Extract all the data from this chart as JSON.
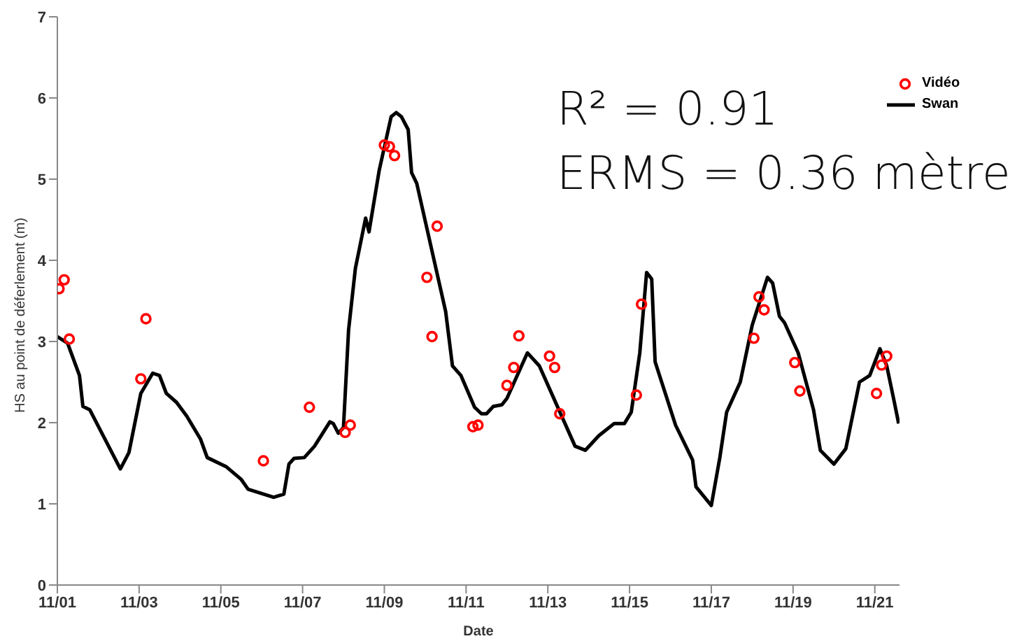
{
  "chart_data": {
    "type": "line",
    "xlabel": "Date",
    "ylabel": "HS au point de déferlement (m)",
    "xlim": [
      "--11-01",
      "--11-21T14:30"
    ],
    "xticks": [
      {
        "value": "--11-01",
        "label": "11/01"
      },
      {
        "value": "--11-03",
        "label": "11/03"
      },
      {
        "value": "--11-05",
        "label": "11/05"
      },
      {
        "value": "--11-07",
        "label": "11/07"
      },
      {
        "value": "--11-09",
        "label": "11/09"
      },
      {
        "value": "--11-11",
        "label": "11/11"
      },
      {
        "value": "--11-13",
        "label": "11/13"
      },
      {
        "value": "--11-15",
        "label": "11/15"
      },
      {
        "value": "--11-17",
        "label": "11/17"
      },
      {
        "value": "--11-19",
        "label": "11/19"
      },
      {
        "value": "--11-21",
        "label": "11/21"
      }
    ],
    "ylim": [
      0,
      7
    ],
    "yticks": [
      0,
      1,
      2,
      3,
      4,
      5,
      6,
      7
    ],
    "legend": "top right",
    "annotations": [
      "R² = 0.91",
      "ERMS = 0.36 mètre"
    ],
    "series": [
      {
        "name": "Vidéo",
        "type": "scatter",
        "color": "#ff0000",
        "marker": "circle",
        "x": [
          "--11-01T01:00",
          "--11-01T04:00",
          "--11-01T07:00",
          "--11-03T01:00",
          "--11-03T04:00",
          "--11-06T01:00",
          "--11-07T04:00",
          "--11-08T01:00",
          "--11-08T04:00",
          "--11-09T00:00",
          "--11-09T03:00",
          "--11-09T06:00",
          "--11-10T01:00",
          "--11-10T04:00",
          "--11-10T07:00",
          "--11-11T04:00",
          "--11-11T07:00",
          "--11-12T00:00",
          "--11-12T04:00",
          "--11-12T07:00",
          "--11-13T01:00",
          "--11-13T04:00",
          "--11-13T07:00",
          "--11-15T04:00",
          "--11-15T07:00",
          "--11-18T01:00",
          "--11-18T04:00",
          "--11-18T07:00",
          "--11-19T01:00",
          "--11-19T04:00",
          "--11-21T01:00",
          "--11-21T04:00",
          "--11-21T07:00"
        ],
        "values": [
          3.65,
          3.76,
          3.03,
          2.54,
          3.28,
          1.53,
          2.19,
          1.88,
          1.97,
          5.42,
          5.4,
          5.29,
          3.79,
          3.06,
          4.42,
          1.95,
          1.97,
          2.46,
          2.68,
          3.07,
          2.82,
          2.68,
          2.11,
          2.34,
          3.46,
          3.04,
          3.55,
          3.39,
          2.74,
          2.39,
          2.36,
          2.71,
          2.82
        ]
      },
      {
        "name": "Swan",
        "color": "#000000",
        "line_style": "solid",
        "x": [
          "--11-01T00:00",
          "--11-01T06:00",
          "--11-01T13:00",
          "--11-01T15:00",
          "--11-01T19:00",
          "--11-02T13:00",
          "--11-02T18:00",
          "--11-03T01:00",
          "--11-03T08:00",
          "--11-03T12:00",
          "--11-03T16:00",
          "--11-03T22:00",
          "--11-04T04:00",
          "--11-04T12:00",
          "--11-04T16:00",
          "--11-05T03:00",
          "--11-05T12:00",
          "--11-05T16:00",
          "--11-06T07:00",
          "--11-06T13:00",
          "--11-06T16:00",
          "--11-06T19:00",
          "--11-07T01:00",
          "--11-07T07:00",
          "--11-07T16:00",
          "--11-07T18:00",
          "--11-07T21:00",
          "--11-08T00:00",
          "--11-08T03:00",
          "--11-08T07:00",
          "--11-08T13:00",
          "--11-08T15:00",
          "--11-08T21:00",
          "--11-09T04:00",
          "--11-09T07:00",
          "--11-09T10:00",
          "--11-09T14:00",
          "--11-09T16:00",
          "--11-09T19:00",
          "--11-10T12:00",
          "--11-10T16:00",
          "--11-10T21:00",
          "--11-11T05:00",
          "--11-11T09:00",
          "--11-11T12:00",
          "--11-11T16:00",
          "--11-11T21:00",
          "--11-12T00:00",
          "--11-12T12:00",
          "--11-12T19:00",
          "--11-13T16:00",
          "--11-13T22:00",
          "--11-14T06:00",
          "--11-14T15:00",
          "--11-14T21:00",
          "--11-15T01:00",
          "--11-15T06:00",
          "--11-15T10:00",
          "--11-15T13:00",
          "--11-15T15:00",
          "--11-16T03:00",
          "--11-16T13:00",
          "--11-16T15:00",
          "--11-17T00:00",
          "--11-17T05:00",
          "--11-17T09:00",
          "--11-17T17:00",
          "--11-18T00:00",
          "--11-18T09:00",
          "--11-18T12:00",
          "--11-18T16:00",
          "--11-18T19:00",
          "--11-19T03:00",
          "--11-19T12:00",
          "--11-19T16:00",
          "--11-20T00:00",
          "--11-20T07:00",
          "--11-20T15:00",
          "--11-20T21:00",
          "--11-21T03:00",
          "--11-21T07:00",
          "--11-21T11:00",
          "--11-21T14:00"
        ],
        "values": [
          3.06,
          2.98,
          2.58,
          2.2,
          2.16,
          1.43,
          1.63,
          2.36,
          2.61,
          2.58,
          2.36,
          2.25,
          2.08,
          1.8,
          1.57,
          1.46,
          1.3,
          1.18,
          1.08,
          1.12,
          1.49,
          1.56,
          1.57,
          1.71,
          2.01,
          1.99,
          1.87,
          1.94,
          3.14,
          3.9,
          4.52,
          4.35,
          5.11,
          5.77,
          5.82,
          5.77,
          5.61,
          5.08,
          4.95,
          3.37,
          2.7,
          2.58,
          2.19,
          2.11,
          2.11,
          2.2,
          2.22,
          2.3,
          2.86,
          2.7,
          1.71,
          1.66,
          1.84,
          1.99,
          1.99,
          2.13,
          2.86,
          3.85,
          3.77,
          2.75,
          1.97,
          1.54,
          1.21,
          0.98,
          1.57,
          2.13,
          2.5,
          3.2,
          3.79,
          3.72,
          3.31,
          3.23,
          2.86,
          2.16,
          1.66,
          1.49,
          1.68,
          2.5,
          2.58,
          2.91,
          2.7,
          2.3,
          1.99
        ]
      }
    ]
  }
}
